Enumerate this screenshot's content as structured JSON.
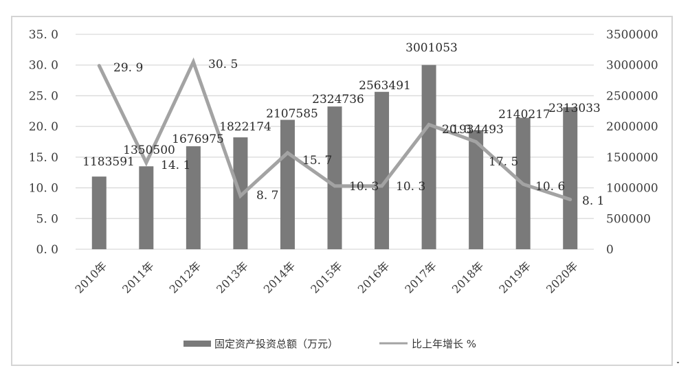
{
  "chart_data": {
    "type": "bar+line",
    "title": "",
    "categories": [
      "2010年",
      "2011年",
      "2012年",
      "2013年",
      "2014年",
      "2015年",
      "2016年",
      "2017年",
      "2018年",
      "2019年",
      "2020年"
    ],
    "series": [
      {
        "name": "固定资产投资总额（万元）",
        "type": "bar",
        "axis": "right",
        "color": "#7a7a7a",
        "values": [
          1183591,
          1350500,
          1676975,
          1822174,
          2107585,
          2324736,
          2563491,
          3001053,
          1934493,
          2140217,
          2313033
        ],
        "labels": [
          "1183591",
          "1350500",
          "1676975",
          "1822174",
          "2107585",
          "2324736",
          "2563491",
          "3001053",
          "1934493",
          "2140217",
          "2313033"
        ]
      },
      {
        "name": "比上年增长 %",
        "type": "line",
        "axis": "left",
        "color": "#a3a3a3",
        "values": [
          29.9,
          14.1,
          30.5,
          8.7,
          15.7,
          10.3,
          10.3,
          20.3,
          17.5,
          10.6,
          8.1
        ],
        "labels": [
          "29.9",
          "14.1",
          "30.5",
          "8.7",
          "15.7",
          "10.3",
          "10.3",
          "20.3",
          "17.5",
          "10.6",
          "8.1"
        ]
      }
    ],
    "left_axis": {
      "ylim": [
        0,
        35
      ],
      "ticks": [
        "0.0",
        "5.0",
        "10.0",
        "15.0",
        "20.0",
        "25.0",
        "30.0",
        "35.0"
      ]
    },
    "right_axis": {
      "ylim": [
        0,
        3500000
      ],
      "ticks": [
        "0",
        "500000",
        "1000000",
        "1500000",
        "2000000",
        "2500000",
        "3000000",
        "3500000"
      ]
    },
    "grid": true,
    "legend_position": "bottom",
    "xlabel": "",
    "ylabel": ""
  },
  "legend": {
    "bar_label": "固定资产投资总额（万元）",
    "line_label": "比上年增长 %"
  }
}
